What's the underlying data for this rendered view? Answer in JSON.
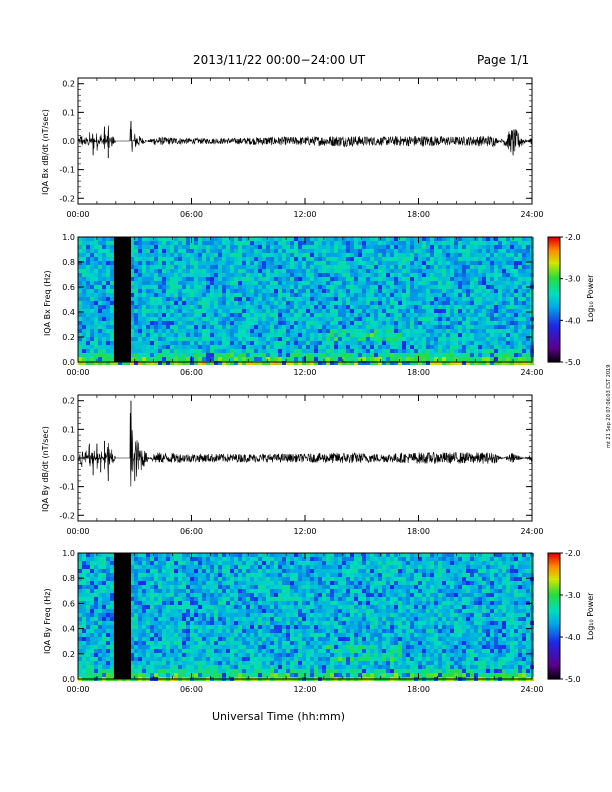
{
  "header": {
    "title": "2013/11/22  00:00−24:00 UT",
    "page": "Page 1/1"
  },
  "footer": {
    "xlabel": "Universal Time (hh:mm)",
    "stamp": "mt 21 Sep 20 07:06:03 CST 2019"
  },
  "colorbar": {
    "label": "Log₁₀ Power",
    "ticks": [
      "-2.0",
      "-3.0",
      "-4.0",
      "-5.0"
    ]
  },
  "chart_data": [
    {
      "type": "line",
      "ylabel": "IQA Bx dB/dt (nT/sec)",
      "x_ticks": [
        "00:00",
        "06:00",
        "12:00",
        "18:00",
        "24:00"
      ],
      "y_ticks": [
        "0.2",
        "0.1",
        "0.0",
        "-0.1",
        "-0.2"
      ],
      "xlim": [
        0,
        24
      ],
      "ylim": [
        -0.22,
        0.22
      ],
      "series": [
        {
          "x": [
            0,
            0.2,
            0.4,
            0.6,
            0.8,
            1.0,
            1.2,
            1.4,
            1.6,
            1.8,
            2.0,
            2.5,
            2.8,
            3.0,
            4,
            6,
            8,
            10,
            12,
            14,
            16,
            18,
            20,
            22,
            23,
            24
          ],
          "y": [
            0.0,
            0.03,
            -0.03,
            0.04,
            -0.05,
            0.04,
            -0.04,
            0.05,
            -0.06,
            0.03,
            0.0,
            0.0,
            0.07,
            -0.03,
            0.015,
            0.01,
            0.01,
            0.015,
            0.015,
            0.02,
            0.015,
            0.02,
            0.015,
            0.02,
            -0.05,
            0.015
          ]
        }
      ],
      "gap": [
        2.0,
        2.75
      ]
    },
    {
      "type": "heatmap",
      "ylabel": "IQA Bx Freq (Hz)",
      "x_ticks": [
        "00:00",
        "06:00",
        "12:00",
        "18:00",
        "24:00"
      ],
      "y_ticks": [
        "1.0",
        "0.8",
        "0.6",
        "0.4",
        "0.2",
        "0.0"
      ],
      "xlim": [
        0,
        24
      ],
      "ylim": [
        0,
        1.0
      ],
      "data_gap": [
        1.9,
        2.8
      ],
      "colorscale": {
        "min": -5.0,
        "max": -2.0
      }
    },
    {
      "type": "line",
      "ylabel": "IQA By dB/dt (nT/sec)",
      "x_ticks": [
        "00:00",
        "06:00",
        "12:00",
        "18:00",
        "24:00"
      ],
      "y_ticks": [
        "0.2",
        "0.1",
        "0.0",
        "-0.1",
        "-0.2"
      ],
      "xlim": [
        0,
        24
      ],
      "ylim": [
        -0.22,
        0.22
      ],
      "series": [
        {
          "x": [
            0,
            0.2,
            0.4,
            0.6,
            0.8,
            1.0,
            1.2,
            1.4,
            1.6,
            1.8,
            2.0,
            2.5,
            2.8,
            3.0,
            4,
            6,
            8,
            10,
            12,
            14,
            16,
            18,
            20,
            22,
            23,
            24
          ],
          "y": [
            0.0,
            0.04,
            -0.04,
            0.05,
            -0.06,
            0.05,
            -0.05,
            0.06,
            -0.08,
            0.04,
            0.0,
            0.0,
            0.2,
            -0.08,
            0.02,
            0.015,
            0.015,
            0.015,
            0.015,
            0.02,
            0.015,
            0.02,
            0.02,
            0.02,
            -0.02,
            0.015
          ]
        }
      ],
      "gap": [
        2.0,
        2.75
      ]
    },
    {
      "type": "heatmap",
      "ylabel": "IQA By Freq (Hz)",
      "x_ticks": [
        "00:00",
        "06:00",
        "12:00",
        "18:00",
        "24:00"
      ],
      "y_ticks": [
        "1.0",
        "0.8",
        "0.6",
        "0.4",
        "0.2",
        "0.0"
      ],
      "xlim": [
        0,
        24
      ],
      "ylim": [
        0,
        1.0
      ],
      "data_gap": [
        1.9,
        2.8
      ],
      "colorscale": {
        "min": -5.0,
        "max": -2.0
      }
    }
  ]
}
